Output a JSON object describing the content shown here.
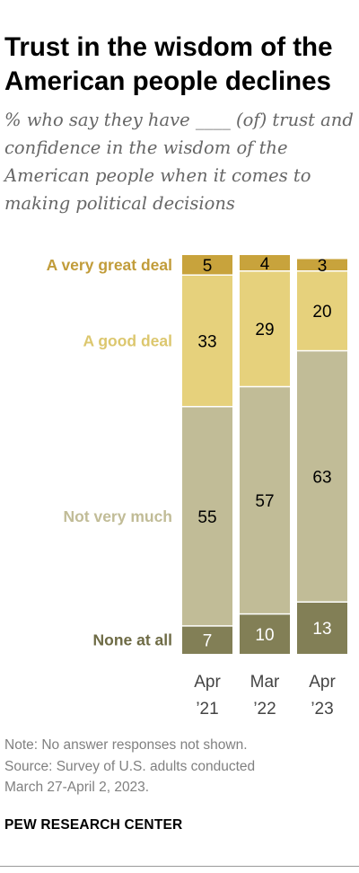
{
  "header": {
    "title": "Trust in the wisdom of the American people declines",
    "subtitle": "% who say they have ____ (of) trust and confidence in the wisdom of the American people when it comes to making political decisions"
  },
  "chart_data": {
    "type": "bar",
    "stacked": true,
    "orientation": "vertical",
    "categories": [
      "Apr ’21",
      "Mar ’22",
      "Apr ’23"
    ],
    "category_lines": [
      [
        "Apr",
        "’21"
      ],
      [
        "Mar",
        "’22"
      ],
      [
        "Apr",
        "’23"
      ]
    ],
    "series": [
      {
        "name": "None at all",
        "values": [
          7,
          10,
          13
        ],
        "color": "#827f56",
        "label_color": "#ffffff",
        "legend_color": "#6e6b45"
      },
      {
        "name": "Not very much",
        "values": [
          55,
          57,
          63
        ],
        "color": "#c1bc97",
        "label_color": "#000000",
        "legend_color": "#c1bc97"
      },
      {
        "name": "A good deal",
        "values": [
          33,
          29,
          20
        ],
        "color": "#e6d17c",
        "label_color": "#000000",
        "legend_color": "#dcc76e"
      },
      {
        "name": "A very great deal",
        "values": [
          5,
          4,
          3
        ],
        "color": "#c8a33c",
        "label_color": "#000000",
        "legend_color": "#c19c3a"
      }
    ],
    "ylim": [
      0,
      100
    ],
    "grid": false,
    "legend": "left"
  },
  "footer": {
    "note": "Note: No answer responses not shown.",
    "source_lines": [
      "Source: Survey of U.S. adults conducted",
      "March 27-April 2, 2023."
    ],
    "brand": "PEW RESEARCH CENTER"
  }
}
